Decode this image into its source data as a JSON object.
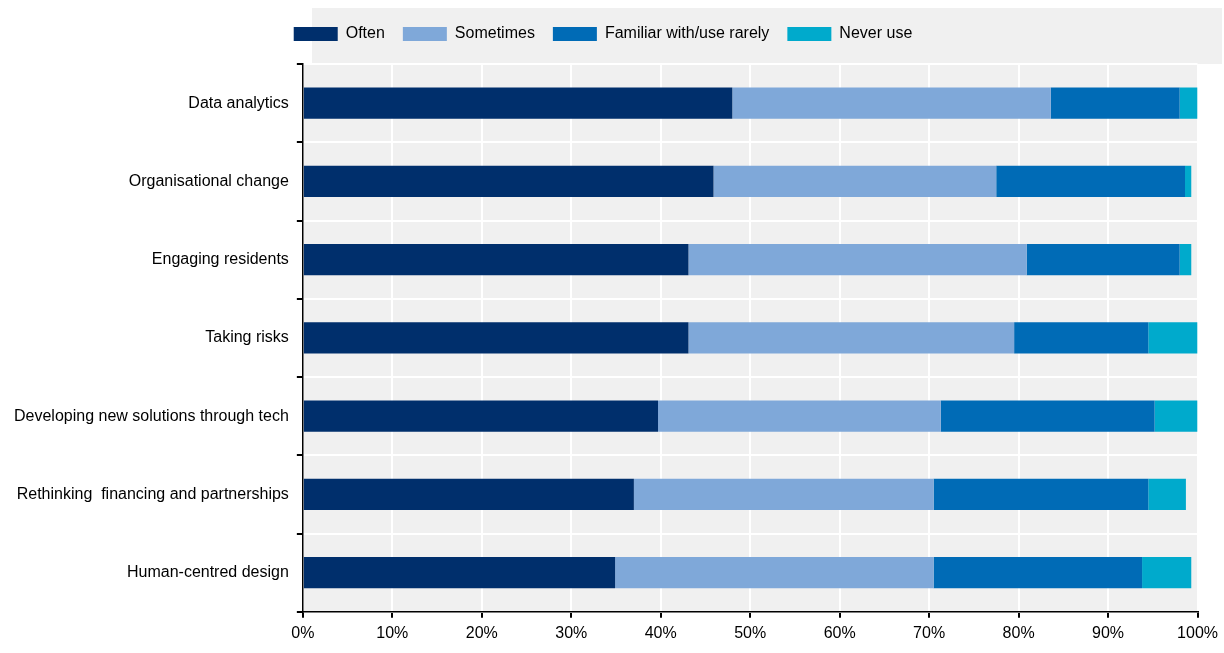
{
  "chart_data": {
    "type": "bar",
    "orientation": "horizontal",
    "stacked": true,
    "legend": "top",
    "grid": true,
    "categories": [
      "Data analytics",
      "Organisational change",
      "Engaging residents",
      "Taking risks",
      "Developing new solutions through tech",
      "Rethinking  financing and partnerships",
      "Human-centred design"
    ],
    "series": [
      {
        "name": "Often",
        "color": "#002f6c",
        "values": [
          48.0,
          45.9,
          43.1,
          43.1,
          39.7,
          37.0,
          34.9
        ]
      },
      {
        "name": "Sometimes",
        "color": "#7fa8d9",
        "values": [
          35.6,
          31.6,
          37.8,
          36.4,
          31.6,
          33.5,
          35.6
        ]
      },
      {
        "name": "Familiar with/use rarely",
        "color": "#006bb6",
        "values": [
          14.4,
          21.1,
          17.1,
          15.0,
          23.9,
          24.0,
          23.3
        ]
      },
      {
        "name": "Never use",
        "color": "#00aacc",
        "values": [
          2.0,
          0.7,
          1.3,
          5.5,
          4.8,
          4.2,
          5.5
        ]
      }
    ],
    "xlim": [
      0,
      100
    ],
    "xticks": [
      {
        "value": 0,
        "label": "0%"
      },
      {
        "value": 10,
        "label": "10%"
      },
      {
        "value": 20,
        "label": "20%"
      },
      {
        "value": 30,
        "label": "30%"
      },
      {
        "value": 40,
        "label": "40%"
      },
      {
        "value": 50,
        "label": "50%"
      },
      {
        "value": 60,
        "label": "60%"
      },
      {
        "value": 70,
        "label": "70%"
      },
      {
        "value": 80,
        "label": "80%"
      },
      {
        "value": 90,
        "label": "90%"
      },
      {
        "value": 100,
        "label": "100%"
      }
    ]
  }
}
